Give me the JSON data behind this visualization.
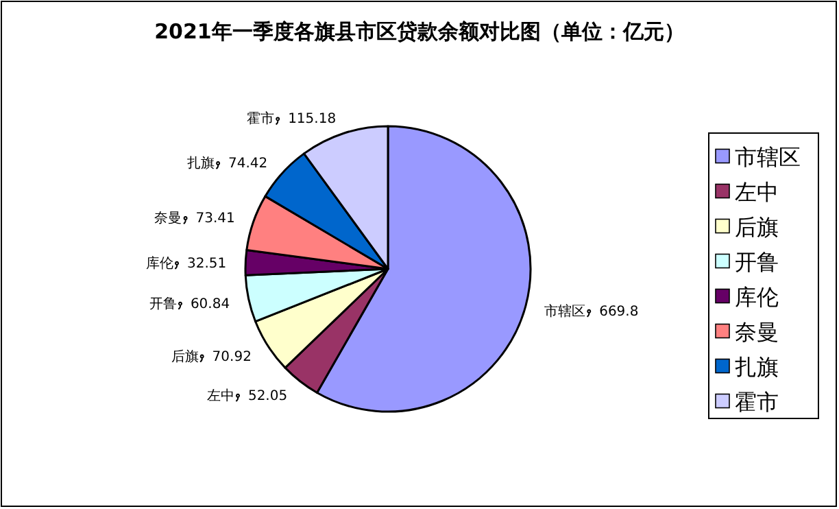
{
  "chart_data": {
    "type": "pie",
    "title": "2021年一季度各旗县市区贷款余额对比图（单位：亿元）",
    "categories": [
      "市辖区",
      "左中",
      "后旗",
      "开鲁",
      "库伦",
      "奈曼",
      "扎旗",
      "霍市"
    ],
    "values": [
      669.8,
      52.05,
      70.92,
      60.84,
      32.51,
      73.41,
      74.42,
      115.18
    ],
    "colors": [
      "#9999ff",
      "#993366",
      "#ffffcc",
      "#ccffff",
      "#660066",
      "#ff8080",
      "#0066cc",
      "#ccccff"
    ],
    "data_labels": true,
    "legend": "right"
  }
}
